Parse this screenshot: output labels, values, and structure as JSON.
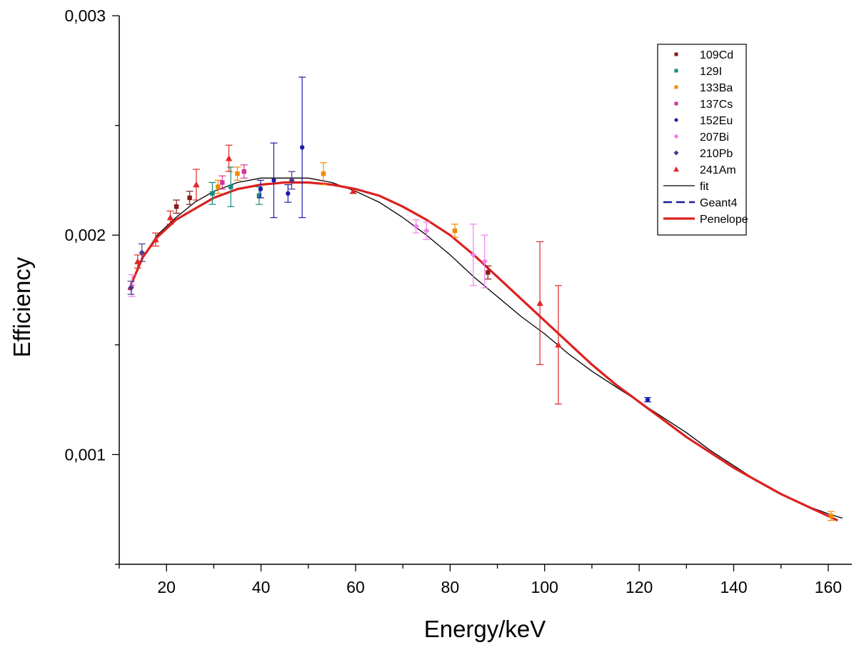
{
  "chart_data": {
    "type": "scatter",
    "title": "",
    "xlabel": "Energy/keV",
    "ylabel": "Efficiency",
    "xlim": [
      10,
      165
    ],
    "ylim": [
      0.0005,
      0.003
    ],
    "x_ticks": [
      20,
      40,
      60,
      80,
      100,
      120,
      140,
      160
    ],
    "x_tick_labels": [
      "20",
      "40",
      "60",
      "80",
      "100",
      "120",
      "140",
      "160"
    ],
    "y_ticks": [
      0.001,
      0.002,
      0.003
    ],
    "y_tick_labels": [
      "0,001",
      "0,002",
      "0,003"
    ],
    "grid": false,
    "legend_position": "top-right",
    "series": [
      {
        "name": "109Cd",
        "kind": "points",
        "marker": "square",
        "color": "#8b1a1a",
        "points": [
          [
            22.1,
            0.00213,
            3e-05
          ],
          [
            24.9,
            0.00217,
            3e-05
          ],
          [
            88.0,
            0.00183,
            3e-05
          ]
        ]
      },
      {
        "name": "129I",
        "kind": "points",
        "marker": "square",
        "color": "#168a7a",
        "points": [
          [
            29.7,
            0.00219,
            5e-05
          ],
          [
            33.6,
            0.00222,
            9e-05
          ],
          [
            39.6,
            0.00218,
            4e-05
          ]
        ]
      },
      {
        "name": "133Ba",
        "kind": "points",
        "marker": "square",
        "color": "#f08c00",
        "points": [
          [
            30.9,
            0.00222,
            3e-05
          ],
          [
            35.0,
            0.00228,
            3e-05
          ],
          [
            53.2,
            0.00228,
            5e-05
          ],
          [
            81.0,
            0.00202,
            3e-05
          ],
          [
            160.6,
            0.00072,
            2e-05
          ]
        ]
      },
      {
        "name": "137Cs",
        "kind": "points",
        "marker": "square",
        "color": "#d6339b",
        "points": [
          [
            31.8,
            0.00224,
            3e-05
          ],
          [
            36.4,
            0.00229,
            3e-05
          ]
        ]
      },
      {
        "name": "152Eu",
        "kind": "points",
        "marker": "circle",
        "color": "#1c1ca8",
        "points": [
          [
            39.9,
            0.00221,
            4e-05
          ],
          [
            45.7,
            0.00219,
            4e-05
          ],
          [
            42.7,
            0.00225,
            0.00017
          ],
          [
            48.7,
            0.0024,
            0.00032
          ],
          [
            121.8,
            0.00125,
            1e-05
          ]
        ]
      },
      {
        "name": "207Bi",
        "kind": "points",
        "marker": "diamond",
        "color": "#ee82ee",
        "points": [
          [
            12.7,
            0.00177,
            5e-05
          ],
          [
            72.8,
            0.00204,
            3e-05
          ],
          [
            75.0,
            0.00202,
            4e-05
          ],
          [
            84.9,
            0.00191,
            0.00014
          ],
          [
            87.3,
            0.00188,
            0.00012
          ]
        ]
      },
      {
        "name": "210Pb",
        "kind": "points",
        "marker": "diamond",
        "color": "#4a3a8a",
        "points": [
          [
            12.5,
            0.00176,
            3e-05
          ],
          [
            14.8,
            0.00192,
            4e-05
          ],
          [
            46.5,
            0.00225,
            4e-05
          ]
        ]
      },
      {
        "name": "241Am",
        "kind": "points",
        "marker": "triangle",
        "color": "#e32626",
        "points": [
          [
            13.9,
            0.00188,
            3e-05
          ],
          [
            17.7,
            0.00198,
            3e-05
          ],
          [
            20.8,
            0.00208,
            3e-05
          ],
          [
            26.3,
            0.00223,
            7e-05
          ],
          [
            33.2,
            0.00235,
            6e-05
          ],
          [
            59.5,
            0.0022,
            1e-05
          ],
          [
            99.0,
            0.00169,
            0.00028
          ],
          [
            102.9,
            0.0015,
            0.00027
          ]
        ]
      },
      {
        "name": "fit",
        "kind": "line",
        "style": "solid-thin",
        "color": "#000000",
        "points": [
          [
            12,
            0.00175
          ],
          [
            15,
            0.0019
          ],
          [
            18,
            0.002
          ],
          [
            22,
            0.00208
          ],
          [
            26,
            0.00215
          ],
          [
            30,
            0.0022
          ],
          [
            35,
            0.00224
          ],
          [
            40,
            0.00226
          ],
          [
            45,
            0.00226
          ],
          [
            50,
            0.00226
          ],
          [
            55,
            0.00224
          ],
          [
            60,
            0.0022
          ],
          [
            65,
            0.00215
          ],
          [
            70,
            0.00208
          ],
          [
            75,
            0.002
          ],
          [
            80,
            0.00191
          ],
          [
            85,
            0.00181
          ],
          [
            90,
            0.00172
          ],
          [
            95,
            0.00163
          ],
          [
            100,
            0.00155
          ],
          [
            105,
            0.00146
          ],
          [
            110,
            0.00138
          ],
          [
            115,
            0.00131
          ],
          [
            120,
            0.00124
          ],
          [
            125,
            0.00117
          ],
          [
            130,
            0.0011
          ],
          [
            135,
            0.00102
          ],
          [
            140,
            0.00095
          ],
          [
            145,
            0.00088
          ],
          [
            150,
            0.00082
          ],
          [
            155,
            0.00077
          ],
          [
            160,
            0.00073
          ],
          [
            163,
            0.00071
          ]
        ]
      },
      {
        "name": "Geant4",
        "kind": "line",
        "style": "dashed",
        "color": "#1a1aa0",
        "points": [
          [
            12,
            0.00175
          ],
          [
            15,
            0.0019
          ],
          [
            18,
            0.00199
          ],
          [
            22,
            0.00207
          ],
          [
            26,
            0.00212
          ],
          [
            30,
            0.00217
          ],
          [
            35,
            0.00221
          ],
          [
            40,
            0.00223
          ],
          [
            45,
            0.00224
          ],
          [
            50,
            0.00224
          ],
          [
            55,
            0.00223
          ],
          [
            60,
            0.00221
          ],
          [
            65,
            0.00218
          ],
          [
            70,
            0.00213
          ],
          [
            75,
            0.00207
          ],
          [
            80,
            0.002
          ],
          [
            85,
            0.00191
          ],
          [
            90,
            0.00181
          ],
          [
            95,
            0.00171
          ],
          [
            100,
            0.00161
          ],
          [
            105,
            0.00151
          ],
          [
            110,
            0.00141
          ],
          [
            115,
            0.00132
          ],
          [
            120,
            0.00124
          ],
          [
            125,
            0.00116
          ],
          [
            130,
            0.00108
          ],
          [
            135,
            0.00101
          ],
          [
            140,
            0.00094
          ],
          [
            145,
            0.00088
          ],
          [
            150,
            0.00082
          ],
          [
            155,
            0.00077
          ],
          [
            160,
            0.00072
          ],
          [
            162,
            0.0007
          ]
        ]
      },
      {
        "name": "Penelope",
        "kind": "line",
        "style": "solid-thick",
        "color": "#dd2020",
        "points": [
          [
            12,
            0.00175
          ],
          [
            15,
            0.0019
          ],
          [
            18,
            0.00199
          ],
          [
            22,
            0.00207
          ],
          [
            26,
            0.00212
          ],
          [
            30,
            0.00217
          ],
          [
            35,
            0.00221
          ],
          [
            40,
            0.00223
          ],
          [
            45,
            0.00224
          ],
          [
            50,
            0.00224
          ],
          [
            55,
            0.00223
          ],
          [
            60,
            0.00221
          ],
          [
            65,
            0.00218
          ],
          [
            70,
            0.00213
          ],
          [
            75,
            0.00207
          ],
          [
            80,
            0.002
          ],
          [
            85,
            0.00191
          ],
          [
            90,
            0.00181
          ],
          [
            95,
            0.00171
          ],
          [
            100,
            0.00161
          ],
          [
            105,
            0.00151
          ],
          [
            110,
            0.00141
          ],
          [
            115,
            0.00132
          ],
          [
            120,
            0.00124
          ],
          [
            125,
            0.00116
          ],
          [
            130,
            0.00108
          ],
          [
            135,
            0.00101
          ],
          [
            140,
            0.00094
          ],
          [
            145,
            0.00088
          ],
          [
            150,
            0.00082
          ],
          [
            155,
            0.00077
          ],
          [
            160,
            0.00072
          ],
          [
            162,
            0.0007
          ]
        ]
      }
    ]
  }
}
